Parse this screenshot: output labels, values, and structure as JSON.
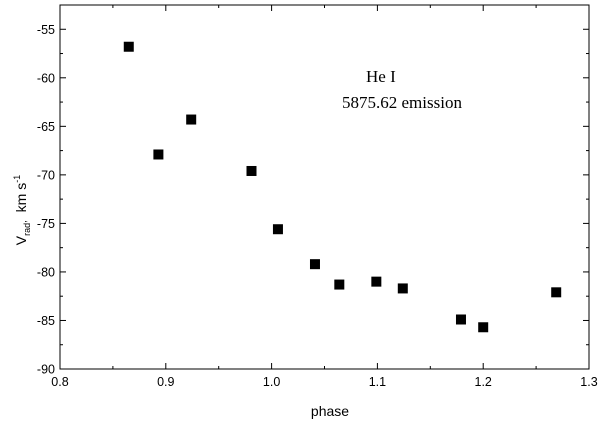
{
  "chart_data": {
    "type": "scatter",
    "xlabel": "phase",
    "ylabel": {
      "main": "V",
      "main_sub": "rad",
      "comma": ",",
      "unit_main": "km s",
      "unit_sup": "-1"
    },
    "annotation": {
      "line1": "He I",
      "line2": "5875.62 emission"
    },
    "xlim": [
      0.8,
      1.3
    ],
    "ylim": [
      -90,
      -52.5
    ],
    "xticks": [
      {
        "v": 0.8,
        "label": "0.8"
      },
      {
        "v": 0.9,
        "label": "0.9"
      },
      {
        "v": 1.0,
        "label": "1.0"
      },
      {
        "v": 1.1,
        "label": "1.1"
      },
      {
        "v": 1.2,
        "label": "1.2"
      },
      {
        "v": 1.3,
        "label": "1.3"
      }
    ],
    "yticks": [
      {
        "v": -55,
        "label": "-55"
      },
      {
        "v": -60,
        "label": "-60"
      },
      {
        "v": -65,
        "label": "-65"
      },
      {
        "v": -70,
        "label": "-70"
      },
      {
        "v": -75,
        "label": "-75"
      },
      {
        "v": -80,
        "label": "-80"
      },
      {
        "v": -85,
        "label": "-85"
      },
      {
        "v": -90,
        "label": "-90"
      }
    ],
    "grid": false,
    "marker": "filled-square",
    "marker_color": "#000000",
    "points": [
      {
        "x": 0.865,
        "y": -56.8
      },
      {
        "x": 0.893,
        "y": -67.9
      },
      {
        "x": 0.924,
        "y": -64.3
      },
      {
        "x": 0.981,
        "y": -69.6
      },
      {
        "x": 1.006,
        "y": -75.6
      },
      {
        "x": 1.041,
        "y": -79.2
      },
      {
        "x": 1.064,
        "y": -81.3
      },
      {
        "x": 1.099,
        "y": -81.0
      },
      {
        "x": 1.124,
        "y": -81.7
      },
      {
        "x": 1.179,
        "y": -84.9
      },
      {
        "x": 1.2,
        "y": -85.7
      },
      {
        "x": 1.269,
        "y": -82.1
      }
    ]
  }
}
